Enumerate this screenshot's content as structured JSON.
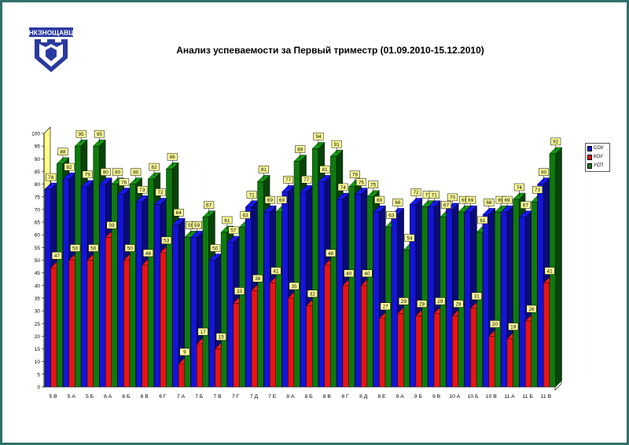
{
  "title": "Анализ успеваемости за Первый триместр (01.09.2010-15.12.2010)",
  "logo": {
    "text": "НКЗНОЩАВЦ",
    "icon": "school-crest-icon"
  },
  "colors": {
    "sou": "#1414d8",
    "kou": "#e81414",
    "usp": "#0e7a0e",
    "label_bg": "#ffff99",
    "wall": "#ffff88"
  },
  "chart_data": {
    "type": "bar",
    "title": "Анализ успеваемости за Первый триместр (01.09.2010-15.12.2010)",
    "xlabel": "",
    "ylabel": "",
    "ylim": [
      0,
      100
    ],
    "yticks": [
      0,
      5,
      10,
      15,
      20,
      25,
      30,
      35,
      40,
      45,
      50,
      55,
      60,
      65,
      70,
      75,
      80,
      85,
      90,
      95,
      100
    ],
    "grid": false,
    "legend": "top-right",
    "categories": [
      "5 В",
      "5 А",
      "5 Б",
      "6 А",
      "6 Б",
      "6 В",
      "6 Г",
      "7 А",
      "7 Б",
      "7 В",
      "7 Г",
      "7 Д",
      "7 Е",
      "8 А",
      "8 Б",
      "8 В",
      "8 Г",
      "8 Д",
      "8 Е",
      "9 А",
      "9 Б",
      "9 В",
      "10 А",
      "10 Б",
      "10 В",
      "11 А",
      "11 Б",
      "11 В"
    ],
    "series": [
      {
        "name": "СОУ",
        "values": [
          78,
          82,
          79,
          80,
          76,
          73,
          72,
          64,
          59,
          50,
          57,
          71,
          69,
          77,
          77,
          81,
          74,
          76,
          69,
          68,
          72,
          71,
          70,
          69,
          68,
          69,
          67,
          80
        ]
      },
      {
        "name": "КОУ",
        "values": [
          47,
          50,
          50,
          59,
          50,
          48,
          53,
          9,
          17,
          15,
          33,
          38,
          41,
          35,
          32,
          48,
          40,
          40,
          27,
          29,
          28,
          29,
          28,
          31,
          20,
          19,
          26,
          41
        ]
      },
      {
        "name": "УСП",
        "values": [
          88,
          95,
          95,
          80,
          80,
          82,
          86,
          59,
          67,
          61,
          63,
          81,
          69,
          89,
          94,
          91,
          79,
          75,
          63,
          54,
          71,
          67,
          69,
          61,
          69,
          74,
          73,
          92
        ]
      }
    ]
  }
}
